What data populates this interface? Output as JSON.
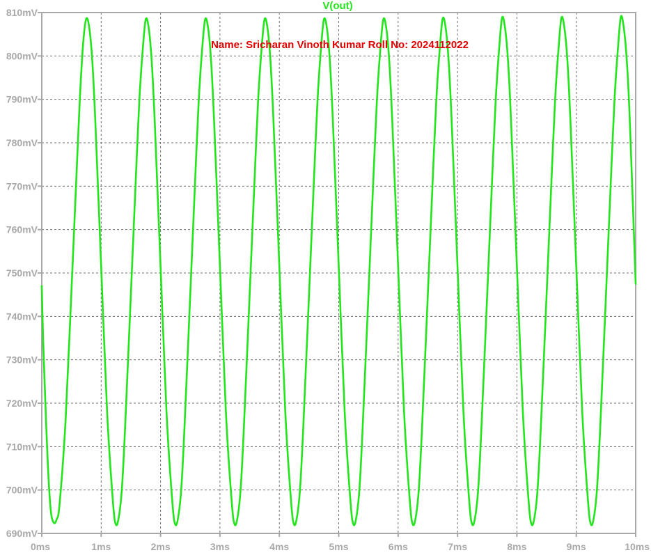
{
  "chart_data": {
    "type": "line",
    "title": "V(out)",
    "annotation": "Name: Sricharan Vinoth Kumar Roll No: 2024112022",
    "xlabel": "",
    "ylabel": "",
    "xlim": [
      0,
      10
    ],
    "ylim": [
      690,
      810
    ],
    "x_unit": "ms",
    "y_unit": "mV",
    "x_ticks": [
      "0ms",
      "1ms",
      "2ms",
      "3ms",
      "4ms",
      "5ms",
      "6ms",
      "7ms",
      "8ms",
      "9ms",
      "10ms"
    ],
    "y_ticks": [
      "810mV",
      "800mV",
      "790mV",
      "780mV",
      "770mV",
      "760mV",
      "750mV",
      "740mV",
      "730mV",
      "720mV",
      "710mV",
      "700mV",
      "690mV"
    ],
    "grid": true,
    "series": [
      {
        "name": "V(out)",
        "x": [
          0,
          0.02,
          0.05,
          0.1,
          0.15,
          0.2,
          0.25,
          0.3,
          0.4,
          0.5,
          0.6,
          0.65,
          0.7,
          0.75,
          0.8,
          0.85,
          0.9,
          1.0,
          1.1,
          1.2,
          1.25,
          1.3,
          1.35,
          1.4,
          1.5,
          1.6,
          1.65,
          1.7,
          1.75,
          1.8,
          1.85,
          1.9,
          2.0,
          2.1,
          2.2,
          2.25,
          2.3,
          2.35,
          2.4,
          2.5,
          2.6,
          2.65,
          2.7,
          2.75,
          2.8,
          2.85,
          2.9,
          3.0,
          3.1,
          3.2,
          3.25,
          3.3,
          3.35,
          3.4,
          3.5,
          3.6,
          3.65,
          3.7,
          3.75,
          3.8,
          3.85,
          3.9,
          4.0,
          4.1,
          4.2,
          4.25,
          4.3,
          4.35,
          4.4,
          4.5,
          4.6,
          4.65,
          4.7,
          4.75,
          4.8,
          4.85,
          4.9,
          5.0,
          5.1,
          5.2,
          5.25,
          5.3,
          5.35,
          5.4,
          5.5,
          5.6,
          5.65,
          5.7,
          5.75,
          5.8,
          5.85,
          5.9,
          6.0,
          6.1,
          6.2,
          6.25,
          6.3,
          6.35,
          6.4,
          6.5,
          6.6,
          6.65,
          6.7,
          6.75,
          6.8,
          6.85,
          6.9,
          7.0,
          7.1,
          7.2,
          7.25,
          7.3,
          7.35,
          7.4,
          7.5,
          7.6,
          7.65,
          7.7,
          7.75,
          7.8,
          7.85,
          7.9,
          8.0,
          8.1,
          8.2,
          8.25,
          8.3,
          8.35,
          8.4,
          8.5,
          8.6,
          8.65,
          8.7,
          8.75,
          8.8,
          8.85,
          8.9,
          9.0,
          9.1,
          9.2,
          9.25,
          9.3,
          9.35,
          9.4,
          9.5,
          9.6,
          9.65,
          9.7,
          9.75,
          9.8,
          9.85,
          9.9,
          10.0
        ],
        "values": [
          747.0,
          736.0,
          724.0,
          706.5,
          695.5,
          692.5,
          693.2,
          696.8,
          715.8,
          746.0,
          777.5,
          792.5,
          803.5,
          808.6,
          806.5,
          799.0,
          785.5,
          751.5,
          718.0,
          697.0,
          692.0,
          694.0,
          700.5,
          713.5,
          745.0,
          777.0,
          791.5,
          801.5,
          808.4,
          806.5,
          799.0,
          785.5,
          751.5,
          718.0,
          697.0,
          692.0,
          694.0,
          700.5,
          713.5,
          745.0,
          777.0,
          791.5,
          801.5,
          808.4,
          806.5,
          799.0,
          785.5,
          751.5,
          718.0,
          697.0,
          692.0,
          694.0,
          700.5,
          713.5,
          745.0,
          777.0,
          791.5,
          801.5,
          808.4,
          806.5,
          799.0,
          785.5,
          751.5,
          718.0,
          697.0,
          692.0,
          694.0,
          700.5,
          713.5,
          745.0,
          777.0,
          791.5,
          801.5,
          808.4,
          806.5,
          799.0,
          785.5,
          751.5,
          718.0,
          697.0,
          692.0,
          694.0,
          700.5,
          713.5,
          745.0,
          777.0,
          791.5,
          801.5,
          808.4,
          806.5,
          799.0,
          785.5,
          751.5,
          718.0,
          697.0,
          692.0,
          694.0,
          700.5,
          713.5,
          745.0,
          777.0,
          791.5,
          801.5,
          808.6,
          806.5,
          799.0,
          785.5,
          751.5,
          718.0,
          697.0,
          692.0,
          694.0,
          700.5,
          713.5,
          745.0,
          777.0,
          791.5,
          801.5,
          808.8,
          806.5,
          799.0,
          785.5,
          751.5,
          718.0,
          697.0,
          692.0,
          694.0,
          700.5,
          713.5,
          745.0,
          777.0,
          791.5,
          801.5,
          808.8,
          806.5,
          799.0,
          785.5,
          751.5,
          718.0,
          697.0,
          692.0,
          694.0,
          700.5,
          713.5,
          745.0,
          777.0,
          791.5,
          801.5,
          809.0,
          806.5,
          799.0,
          785.5,
          747.5
        ]
      }
    ]
  },
  "colors": {
    "trace": "#22e51b",
    "axis_text": "#a8a8a8",
    "title": "#22e51b",
    "annotation": "#e00000",
    "grid": "#6e6e6e",
    "frame": "#a8a8a8"
  }
}
